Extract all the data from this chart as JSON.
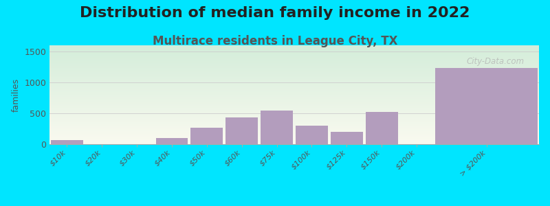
{
  "title": "Distribution of median family income in 2022",
  "subtitle": "Multirace residents in League City, TX",
  "categories": [
    "$10k",
    "$20k",
    "$30k",
    "$40k",
    "$50k",
    "$60k",
    "$75k",
    "$100k",
    "$125k",
    "$150k",
    "$200k",
    "> $200k"
  ],
  "values": [
    70,
    5,
    5,
    100,
    270,
    430,
    540,
    305,
    200,
    520,
    0,
    1235
  ],
  "bar_widths": [
    1,
    1,
    1,
    1,
    1,
    1,
    1,
    1,
    1,
    1,
    1,
    3
  ],
  "bar_color": "#b39dbd",
  "background_color": "#00e5ff",
  "plot_bg_top": "#d4edda",
  "plot_bg_bottom": "#fafaf0",
  "ylabel": "families",
  "ylim": [
    0,
    1600
  ],
  "yticks": [
    0,
    500,
    1000,
    1500
  ],
  "title_fontsize": 16,
  "subtitle_fontsize": 12,
  "subtitle_color": "#555555",
  "watermark": "City-Data.com",
  "grid_color": "#cccccc"
}
